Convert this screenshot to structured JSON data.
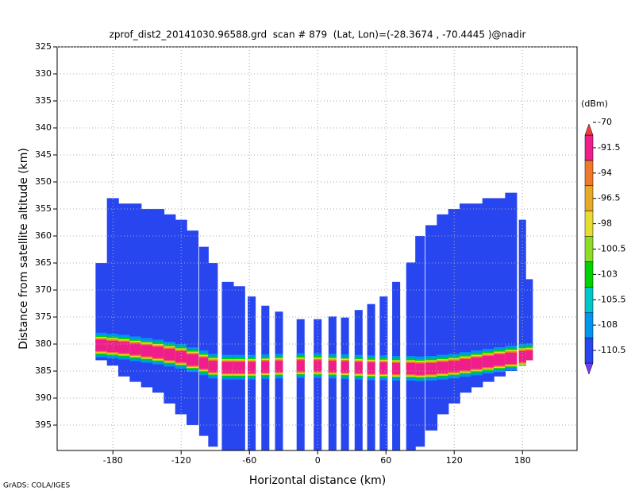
{
  "chart_data": {
    "type": "profile",
    "title": "zprof_dist2_20141030.96588.grd  scan # 879  (Lat, Lon)=(-28.3674 , -70.4445 )@nadir",
    "x_label": "Horizontal distance (km)",
    "y_label": "Distance from satellite altitude (km)",
    "colorbar_label": "(dBm)",
    "footnote": "GrADS: COLA/IGES",
    "xlim": [
      -229,
      228
    ],
    "ylim": [
      399.7,
      325
    ],
    "xticks": [
      -180,
      -120,
      -60,
      0,
      60,
      120,
      180
    ],
    "yticks": [
      325,
      330,
      335,
      340,
      345,
      350,
      355,
      360,
      365,
      370,
      375,
      380,
      385,
      390,
      395
    ],
    "grid": true,
    "field_color": "#2846f0",
    "colorbar_ticks": [
      -110.5,
      -108,
      -105.5,
      -103,
      -100.5,
      -98,
      -96.5,
      -94,
      -91.5,
      -70
    ],
    "colorbar_colors": [
      "#7a3cf0",
      "#2846f0",
      "#0096f0",
      "#00c8c8",
      "#00d200",
      "#8cdc28",
      "#e6dc32",
      "#e6aa28",
      "#f07828",
      "#f01e8c",
      "#f03c3c"
    ],
    "columns": {
      "x": [
        -190,
        -180,
        -170,
        -160,
        -150,
        -140,
        -130,
        -120,
        -110,
        -100,
        -92,
        -79,
        -69,
        -58,
        -46,
        -34,
        -15,
        0,
        13,
        24,
        36,
        47,
        58,
        69,
        82,
        90,
        100,
        110,
        120,
        130,
        140,
        150,
        160,
        170,
        180,
        186
      ],
      "top": [
        365,
        353,
        354,
        354,
        355,
        355,
        356,
        357,
        359,
        362,
        365,
        368.5,
        369.3,
        371.2,
        372.9,
        374,
        375.4,
        375.4,
        374.9,
        375.1,
        373.7,
        372.6,
        371.2,
        368.5,
        364.9,
        360,
        358,
        356,
        355,
        354,
        354,
        353,
        353,
        352,
        357,
        368
      ],
      "bottom": [
        383,
        384,
        386,
        387,
        388,
        389,
        391,
        393,
        395,
        397,
        399,
        399.7,
        399.7,
        399.7,
        399.7,
        399.7,
        399.7,
        399.7,
        399.7,
        399.7,
        399.7,
        399.7,
        399.7,
        399.7,
        399.7,
        399,
        396,
        393,
        391,
        389,
        388,
        387,
        386,
        385,
        384,
        383
      ],
      "band": [
        380.3,
        380.5,
        380.7,
        381,
        381.3,
        381.6,
        382,
        382.4,
        383,
        383.6,
        384.2,
        384.4,
        384.4,
        384.4,
        384.3,
        384.2,
        384.1,
        384.1,
        384.2,
        384.3,
        384.4,
        384.5,
        384.5,
        384.6,
        384.6,
        384.7,
        384.6,
        384.4,
        384.2,
        383.9,
        383.6,
        383.3,
        383,
        382.7,
        382.4,
        382.3
      ]
    }
  }
}
